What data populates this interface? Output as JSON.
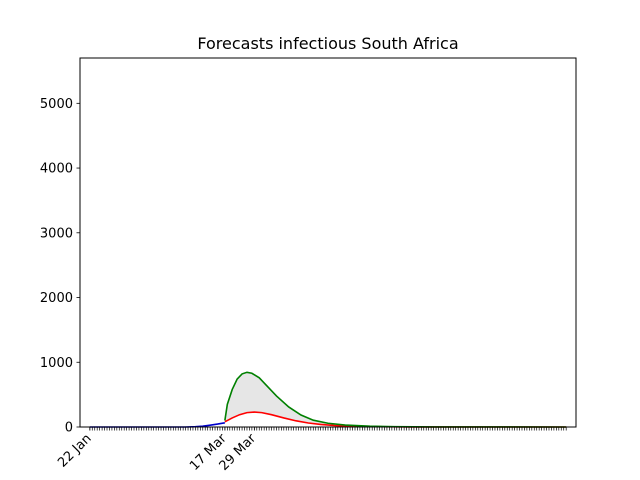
{
  "chart_data": {
    "type": "line",
    "title": "Forecasts infectious South Africa",
    "xlabel": "",
    "ylabel": "",
    "x_axis": {
      "type": "date",
      "range": [
        "2020-01-18",
        "2020-08-07"
      ],
      "labeled_ticks": [
        {
          "date": "2020-01-22",
          "label": "22 Jan"
        },
        {
          "date": "2020-03-17",
          "label": "17 Mar"
        },
        {
          "date": "2020-03-29",
          "label": "29 Mar"
        }
      ],
      "minor_tick_range": [
        "2020-01-22",
        "2020-08-03"
      ]
    },
    "y_axis": {
      "range": [
        0,
        5700
      ],
      "ticks": [
        0,
        1000,
        2000,
        3000,
        4000,
        5000
      ]
    },
    "grid": false,
    "legend": "none",
    "series": [
      {
        "color": "#0000cc",
        "points": [
          [
            "2020-01-22",
            0
          ],
          [
            "2020-02-15",
            0
          ],
          [
            "2020-03-01",
            0
          ],
          [
            "2020-03-05",
            5
          ],
          [
            "2020-03-08",
            12
          ],
          [
            "2020-03-11",
            28
          ],
          [
            "2020-03-14",
            45
          ],
          [
            "2020-03-17",
            65
          ]
        ]
      },
      {
        "color": "#ff0000",
        "points": [
          [
            "2020-03-17",
            80
          ],
          [
            "2020-03-20",
            140
          ],
          [
            "2020-03-23",
            190
          ],
          [
            "2020-03-26",
            222
          ],
          [
            "2020-03-29",
            230
          ],
          [
            "2020-04-01",
            222
          ],
          [
            "2020-04-05",
            190
          ],
          [
            "2020-04-10",
            140
          ],
          [
            "2020-04-15",
            95
          ],
          [
            "2020-04-20",
            62
          ],
          [
            "2020-04-25",
            40
          ],
          [
            "2020-05-01",
            22
          ],
          [
            "2020-05-10",
            10
          ],
          [
            "2020-05-20",
            4
          ],
          [
            "2020-06-01",
            1
          ],
          [
            "2020-08-03",
            0
          ]
        ]
      },
      {
        "color": "#008000",
        "points": [
          [
            "2020-03-17",
            100
          ],
          [
            "2020-03-18",
            350
          ],
          [
            "2020-03-20",
            580
          ],
          [
            "2020-03-22",
            740
          ],
          [
            "2020-03-24",
            820
          ],
          [
            "2020-03-26",
            845
          ],
          [
            "2020-03-28",
            830
          ],
          [
            "2020-03-31",
            760
          ],
          [
            "2020-04-03",
            640
          ],
          [
            "2020-04-07",
            480
          ],
          [
            "2020-04-12",
            310
          ],
          [
            "2020-04-17",
            185
          ],
          [
            "2020-04-22",
            105
          ],
          [
            "2020-04-28",
            58
          ],
          [
            "2020-05-05",
            30
          ],
          [
            "2020-05-15",
            12
          ],
          [
            "2020-05-25",
            5
          ],
          [
            "2020-06-10",
            1
          ],
          [
            "2020-08-03",
            0
          ]
        ]
      }
    ],
    "band": {
      "fill": "#e6e6e6",
      "lower_series": 1,
      "upper_series": 2
    }
  }
}
